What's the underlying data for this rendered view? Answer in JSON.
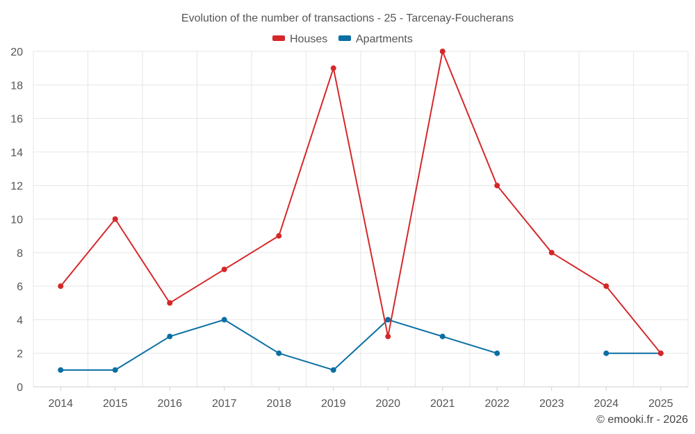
{
  "chart_data": {
    "type": "line",
    "title": "Evolution of the number of transactions - 25 - Tarcenay-Foucherans",
    "categories": [
      "2014",
      "2015",
      "2016",
      "2017",
      "2018",
      "2019",
      "2020",
      "2021",
      "2022",
      "2023",
      "2024",
      "2025"
    ],
    "ylim": [
      0,
      20
    ],
    "yticks": [
      0,
      2,
      4,
      6,
      8,
      10,
      12,
      14,
      16,
      18,
      20
    ],
    "grid": true,
    "legend_position": "top-center",
    "series": [
      {
        "name": "Houses",
        "color": "#d62728",
        "values": [
          6,
          10,
          5,
          7,
          9,
          19,
          3,
          20,
          12,
          8,
          6,
          2
        ]
      },
      {
        "name": "Apartments",
        "color": "#0a6fa3",
        "values": [
          1,
          1,
          3,
          4,
          2,
          1,
          4,
          3,
          2,
          null,
          2,
          2
        ]
      }
    ],
    "credit": "© emooki.fr - 2026"
  }
}
